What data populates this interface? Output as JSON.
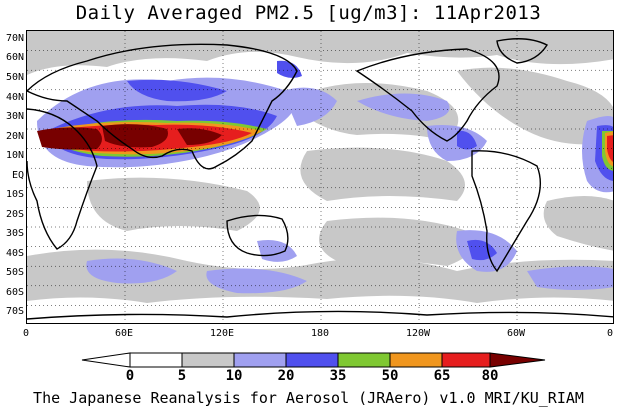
{
  "title": "Daily Averaged PM2.5 [ug/m3]: 11Apr2013",
  "footer": "The Japanese Reanalysis for Aerosol (JRAero) v1.0 MRI/KU_RIAM",
  "lat_labels": [
    "70N",
    "60N",
    "50N",
    "40N",
    "30N",
    "20N",
    "10N",
    "EQ",
    "10S",
    "20S",
    "30S",
    "40S",
    "50S",
    "60S",
    "70S"
  ],
  "lon_labels": [
    "0",
    "60E",
    "120E",
    "180",
    "120W",
    "60W",
    "0"
  ],
  "colorbar": {
    "levels": [
      "0",
      "5",
      "10",
      "20",
      "35",
      "50",
      "65",
      "80"
    ],
    "colors": [
      "#ffffff",
      "#c8c8c8",
      "#a0a0f0",
      "#5050ee",
      "#7fc832",
      "#f0961e",
      "#e61e1e",
      "#780000"
    ]
  },
  "colors": {
    "gray": "#c8c8c8",
    "lightblue": "#a0a0f0",
    "blue": "#5050ee",
    "green": "#7fc832",
    "orange": "#f0961e",
    "red": "#e61e1e",
    "darkred": "#780000"
  }
}
